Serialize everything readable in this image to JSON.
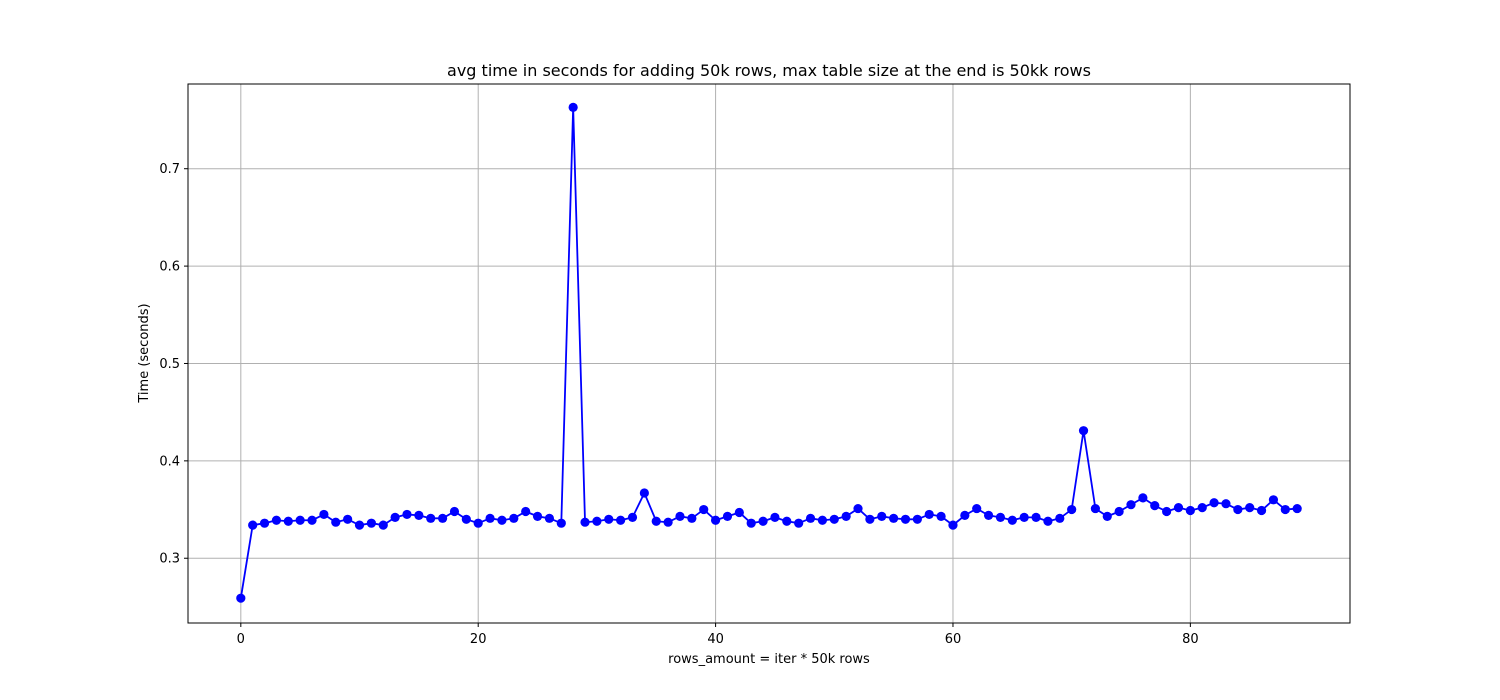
{
  "chart_data": {
    "type": "line",
    "title": "avg time in seconds for adding 50k rows, max table size at the end is 50kk rows",
    "xlabel": "rows_amount = iter * 50k rows",
    "ylabel": "Time (seconds)",
    "xlim": [
      -4.45,
      93.45
    ],
    "ylim": [
      0.2335,
      0.787
    ],
    "xticks": [
      0,
      20,
      40,
      60,
      80
    ],
    "yticks": [
      0.3,
      0.4,
      0.5,
      0.6,
      0.7
    ],
    "ytick_labels": [
      "0.3",
      "0.4",
      "0.5",
      "0.6",
      "0.7"
    ],
    "grid": true,
    "line_color": "#0000ff",
    "marker": "circle",
    "series": [
      {
        "x": [
          0,
          1,
          2,
          3,
          4,
          5,
          6,
          7,
          8,
          9,
          10,
          11,
          12,
          13,
          14,
          15,
          16,
          17,
          18,
          19,
          20,
          21,
          22,
          23,
          24,
          25,
          26,
          27,
          28,
          29,
          30,
          31,
          32,
          33,
          34,
          35,
          36,
          37,
          38,
          39,
          40,
          41,
          42,
          43,
          44,
          45,
          46,
          47,
          48,
          49,
          50,
          51,
          52,
          53,
          54,
          55,
          56,
          57,
          58,
          59,
          60,
          61,
          62,
          63,
          64,
          65,
          66,
          67,
          68,
          69,
          70,
          71,
          72,
          73,
          74,
          75,
          76,
          77,
          78,
          79,
          80,
          81,
          82,
          83,
          84,
          85,
          86,
          87,
          88,
          89
        ],
        "y": [
          0.259,
          0.334,
          0.336,
          0.339,
          0.338,
          0.339,
          0.339,
          0.345,
          0.337,
          0.34,
          0.334,
          0.336,
          0.334,
          0.342,
          0.345,
          0.344,
          0.341,
          0.341,
          0.348,
          0.34,
          0.336,
          0.341,
          0.339,
          0.341,
          0.348,
          0.343,
          0.341,
          0.336,
          0.763,
          0.337,
          0.338,
          0.34,
          0.339,
          0.342,
          0.367,
          0.338,
          0.337,
          0.343,
          0.341,
          0.35,
          0.339,
          0.343,
          0.347,
          0.336,
          0.338,
          0.342,
          0.338,
          0.336,
          0.341,
          0.339,
          0.34,
          0.343,
          0.351,
          0.34,
          0.343,
          0.341,
          0.34,
          0.34,
          0.345,
          0.343,
          0.334,
          0.344,
          0.351,
          0.344,
          0.342,
          0.339,
          0.342,
          0.342,
          0.338,
          0.341,
          0.35,
          0.431,
          0.351,
          0.343,
          0.348,
          0.355,
          0.362,
          0.354,
          0.348,
          0.352,
          0.349,
          0.352,
          0.357,
          0.356,
          0.35,
          0.352,
          0.349,
          0.36,
          0.35,
          0.351
        ]
      }
    ]
  }
}
